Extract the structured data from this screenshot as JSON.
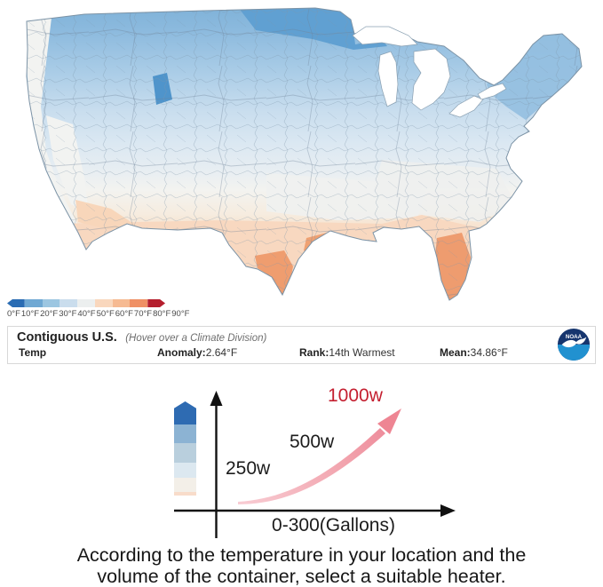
{
  "map": {
    "legend": {
      "labels": [
        "0°F",
        "10°F",
        "20°F",
        "30°F",
        "40°F",
        "50°F",
        "60°F",
        "70°F",
        "80°F",
        "90°F"
      ],
      "colors": [
        "#2a6cb3",
        "#6fa8d3",
        "#9cc6e1",
        "#cadded",
        "#ecefef",
        "#f9d7bd",
        "#f6ba92",
        "#ef9065",
        "#b51f2e"
      ]
    },
    "palette": {
      "cold_dark": "#5f9ed1",
      "cold": "#85b7db",
      "mild": "#d3e4f1",
      "neutral": "#f2f3f1",
      "warm": "#f7d9c0",
      "hot": "#ee9c6f"
    }
  },
  "info_bar": {
    "title": "Contiguous U.S.",
    "hint": "(Hover over a Climate Division)",
    "stats": [
      {
        "label": "Temp",
        "value": ""
      },
      {
        "label": "Anomaly:",
        "value": "2.64°F"
      },
      {
        "label": "Rank:",
        "value": "14th Warmest"
      },
      {
        "label": "Mean:",
        "value": "34.86°F"
      }
    ],
    "logo_text": "NOAA"
  },
  "heater": {
    "bar_colors": [
      "#2e6bb2",
      "#8cb3d3",
      "#b9cfdd",
      "#dce8f0",
      "#f3efe8"
    ],
    "bar_base_color": "#f8dcca",
    "labels": [
      {
        "text": "250w",
        "color": "#1c1c1c"
      },
      {
        "text": "500w",
        "color": "#1c1c1c"
      },
      {
        "text": "1000w",
        "color": "#c41f30"
      }
    ],
    "x_axis_label": "0-300(Gallons)",
    "arrow_color": "#f098a4"
  },
  "caption": {
    "line1": "According to the temperature in your location and the",
    "line2": "volume of the container, select a suitable heater."
  },
  "chart_data": [
    {
      "type": "heatmap",
      "title": "Contiguous U.S. (Hover over a Climate Division)",
      "metric": "Temp",
      "legend_scale_F": [
        0,
        10,
        20,
        30,
        40,
        50,
        60,
        70,
        80,
        90
      ],
      "anomaly": "2.64°F",
      "rank": "14th Warmest",
      "mean": "34.86°F",
      "pattern": "blue (cold) across the northern US, darkest over North Dakota/Minnesota and western Montana; near-white across the west coast and mid-south; orange (warm) along southern California, Arizona, Texas, the Gulf coast and Florida"
    },
    {
      "type": "line",
      "annotations": [
        "250w",
        "500w",
        "1000w"
      ],
      "xlabel": "0-300(Gallons)",
      "shape": "rising curved arrow: heater wattage increases with container volume"
    }
  ]
}
